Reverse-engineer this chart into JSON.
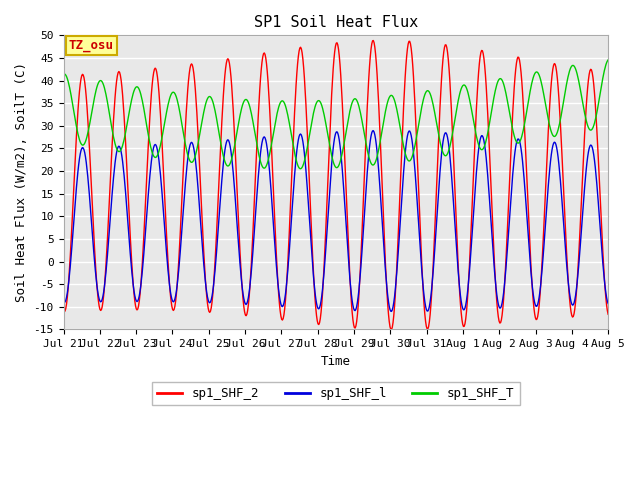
{
  "title": "SP1 Soil Heat Flux",
  "ylabel": "Soil Heat Flux (W/m2), SoilT (C)",
  "xlabel": "Time",
  "ylim": [
    -15,
    50
  ],
  "xtick_labels": [
    "Jul 21",
    "Jul 22",
    "Jul 23",
    "Jul 24",
    "Jul 25",
    "Jul 26",
    "Jul 27",
    "Jul 28",
    "Jul 29",
    "Jul 30",
    "Jul 31",
    "Aug 1",
    "Aug 2",
    "Aug 3",
    "Aug 4",
    "Aug 5"
  ],
  "ytick_vals": [
    -15,
    -10,
    -5,
    0,
    5,
    10,
    15,
    20,
    25,
    30,
    35,
    40,
    45,
    50
  ],
  "line_colors": [
    "#ff0000",
    "#0000dd",
    "#00cc00"
  ],
  "line_labels": [
    "sp1_SHF_2",
    "sp1_SHF_l",
    "sp1_SHF_T"
  ],
  "tz_label": "TZ_osu",
  "fig_facecolor": "#ffffff",
  "plot_bg_color": "#e8e8e8",
  "grid_color": "#ffffff",
  "title_fontsize": 11,
  "tick_fontsize": 8,
  "label_fontsize": 9,
  "legend_fontsize": 9
}
